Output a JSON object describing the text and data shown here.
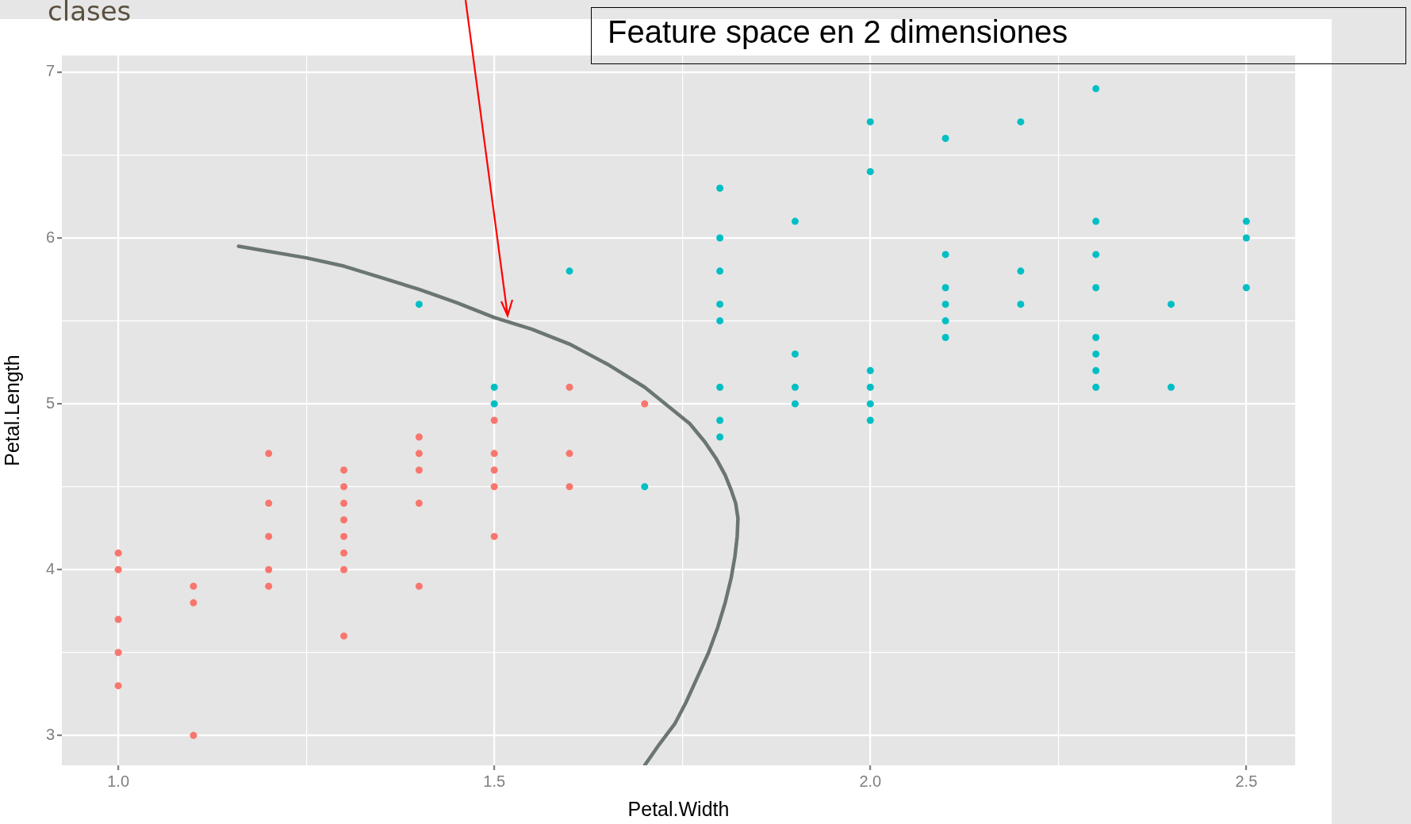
{
  "chart_data": {
    "type": "scatter",
    "title": "Feature space en 2 dimensiones",
    "annotations": [
      "clases"
    ],
    "xlabel": "Petal.Width",
    "ylabel": "Petal.Length",
    "xlim": [
      0.925,
      2.565
    ],
    "ylim": [
      2.82,
      7.1
    ],
    "xticks": [
      {
        "value": 1,
        "label": "1.0"
      },
      {
        "value": 1.25,
        "label": null
      },
      {
        "value": 1.5,
        "label": "1.5"
      },
      {
        "value": 1.75,
        "label": null
      },
      {
        "value": 2,
        "label": "2.0"
      },
      {
        "value": 2.25,
        "label": null
      },
      {
        "value": 2.5,
        "label": "2.5"
      }
    ],
    "yticks": [
      3,
      {
        "value": 3.5,
        "label": null
      },
      4,
      {
        "value": 4.5,
        "label": null
      },
      5,
      {
        "value": 5.5,
        "label": null
      },
      6,
      {
        "value": 6.5,
        "label": null
      },
      7
    ],
    "grid": true,
    "marker": "circle",
    "series": [
      {
        "color": "#f8766d",
        "x": [
          1,
          1,
          1,
          1,
          1,
          1.1,
          1.1,
          1.1,
          1.2,
          1.2,
          1.2,
          1.2,
          1.2,
          1.3,
          1.3,
          1.3,
          1.3,
          1.3,
          1.3,
          1.3,
          1.3,
          1.4,
          1.4,
          1.4,
          1.4,
          1.4,
          1.5,
          1.5,
          1.5,
          1.5,
          1.5,
          1.6,
          1.6,
          1.6,
          1.7
        ],
        "values": [
          4.1,
          4.0,
          3.7,
          3.5,
          3.3,
          3.9,
          3.8,
          3.0,
          4.7,
          4.4,
          4.2,
          4.0,
          3.9,
          4.6,
          4.5,
          4.4,
          4.3,
          4.2,
          4.1,
          4.0,
          3.6,
          4.8,
          4.7,
          4.6,
          4.4,
          3.9,
          4.9,
          4.7,
          4.6,
          4.5,
          4.2,
          5.1,
          4.7,
          4.5,
          5.0
        ]
      },
      {
        "color": "#00bfc4",
        "x": [
          1.4,
          1.5,
          1.5,
          1.6,
          1.7,
          1.8,
          1.8,
          1.8,
          1.8,
          1.8,
          1.8,
          1.8,
          1.8,
          1.9,
          1.9,
          1.9,
          1.9,
          2,
          2,
          2,
          2,
          2,
          2,
          2.1,
          2.1,
          2.1,
          2.1,
          2.1,
          2.1,
          2.2,
          2.2,
          2.2,
          2.3,
          2.3,
          2.3,
          2.3,
          2.3,
          2.3,
          2.3,
          2.3,
          2.4,
          2.4,
          2.5,
          2.5,
          2.5
        ],
        "values": [
          5.6,
          5.1,
          5.0,
          5.8,
          4.5,
          6.3,
          6.0,
          5.8,
          5.6,
          5.5,
          5.1,
          4.9,
          4.8,
          6.1,
          5.3,
          5.1,
          5.0,
          6.7,
          6.4,
          5.2,
          5.1,
          5.0,
          4.9,
          6.6,
          5.9,
          5.7,
          5.6,
          5.5,
          5.4,
          6.7,
          5.8,
          5.6,
          6.9,
          6.1,
          5.9,
          5.7,
          5.4,
          5.3,
          5.2,
          5.1,
          5.6,
          5.1,
          6.1,
          6.0,
          5.7
        ]
      },
      {
        "type": "line",
        "marker": "none",
        "color": "#6b7670",
        "x": [
          1.16,
          1.25,
          1.3,
          1.35,
          1.4,
          1.45,
          1.5,
          1.55,
          1.6,
          1.65,
          1.7,
          1.73,
          1.76,
          1.78,
          1.795,
          1.807,
          1.815,
          1.821,
          1.824,
          1.823,
          1.82,
          1.815,
          1.807,
          1.797,
          1.785,
          1.77,
          1.755,
          1.74,
          1.72,
          1.7
        ],
        "values": [
          5.95,
          5.88,
          5.83,
          5.76,
          5.69,
          5.61,
          5.52,
          5.45,
          5.36,
          5.24,
          5.1,
          4.99,
          4.88,
          4.77,
          4.67,
          4.57,
          4.48,
          4.4,
          4.31,
          4.2,
          4.08,
          3.95,
          3.8,
          3.65,
          3.5,
          3.35,
          3.2,
          3.07,
          2.95,
          2.82
        ]
      }
    ]
  }
}
